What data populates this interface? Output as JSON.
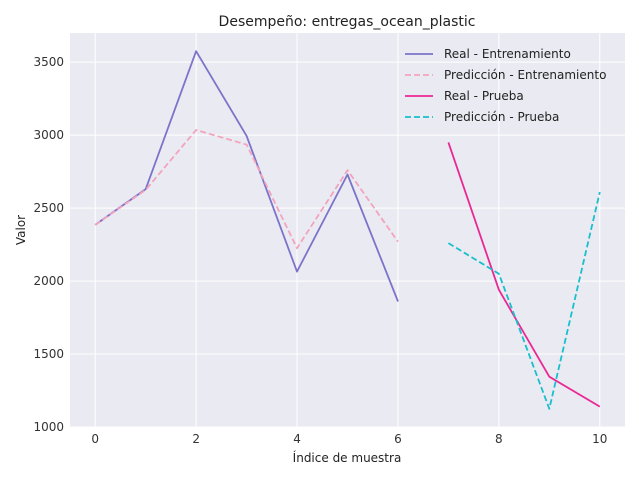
{
  "chart_data": {
    "type": "line",
    "title": "Desempeño: entregas_ocean_plastic",
    "xlabel": "Índice de muestra",
    "ylabel": "Valor",
    "xlim": [
      -0.5,
      10.5
    ],
    "ylim": [
      1000,
      3700
    ],
    "x_ticks": [
      0,
      2,
      4,
      6,
      8,
      10
    ],
    "y_ticks": [
      1000,
      1500,
      2000,
      2500,
      3000,
      3500
    ],
    "grid": true,
    "legend_position": "top-right",
    "series": [
      {
        "name": "Real - Entrenamiento",
        "color": "#7b74c9",
        "dash": "solid",
        "x": [
          0,
          1,
          2,
          3,
          4,
          5,
          6
        ],
        "values": [
          2385,
          2630,
          3575,
          2995,
          2065,
          2730,
          1860
        ]
      },
      {
        "name": "Predicción - Entrenamiento",
        "color": "#f4a3bd",
        "dash": "dashed",
        "x": [
          0,
          1,
          2,
          3,
          4,
          5,
          6
        ],
        "values": [
          2385,
          2625,
          3035,
          2935,
          2225,
          2760,
          2270
        ]
      },
      {
        "name": "Real - Prueba",
        "color": "#ea2894",
        "dash": "solid",
        "x": [
          7,
          8,
          9,
          10
        ],
        "values": [
          2950,
          1940,
          1345,
          1140
        ]
      },
      {
        "name": "Predicción - Prueba",
        "color": "#19bfcc",
        "dash": "dashed",
        "x": [
          7,
          8,
          9,
          10
        ],
        "values": [
          2260,
          2050,
          1125,
          2610
        ]
      }
    ]
  }
}
